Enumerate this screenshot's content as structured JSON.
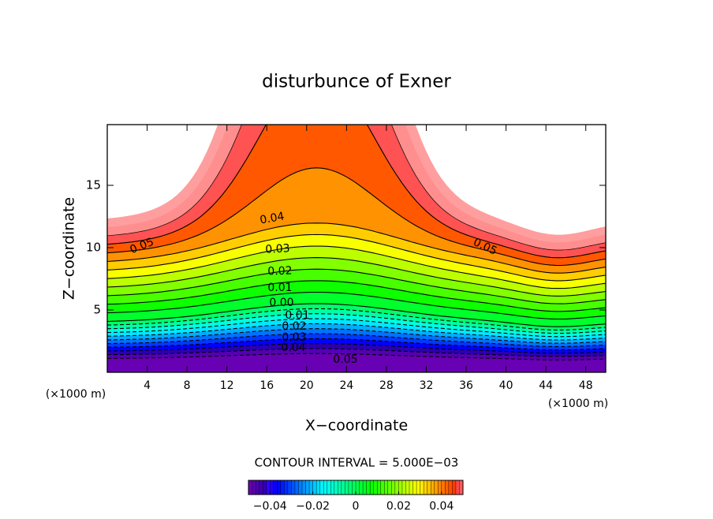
{
  "chart_data": {
    "type": "contour",
    "title": "disturbunce of Exner",
    "xlabel": "X−coordinate",
    "ylabel": "Z−coordinate",
    "x_unit_left": "(×1000 m)",
    "x_unit_right": "(×1000 m)",
    "xlim": [
      0,
      50
    ],
    "ylim": [
      0,
      19.87
    ],
    "xticks": [
      4,
      8,
      12,
      16,
      20,
      24,
      28,
      32,
      36,
      40,
      44,
      48
    ],
    "yticks": [
      5,
      10,
      15
    ],
    "contour_labels": [
      "0.05",
      "0.04",
      "0.03",
      "0.02",
      "0.01",
      "0.00",
      "0.01",
      "0.02",
      "0.03",
      "0.04",
      "0.05",
      "0.05"
    ],
    "contour_interval": "CONTOUR INTERVAL = 5.000E−03",
    "colorbar_lim": [
      -0.05,
      0.05
    ],
    "colorbar_ticks": [
      {
        "value": -0.04,
        "label": "−0.04"
      },
      {
        "value": -0.02,
        "label": "−0.02"
      },
      0,
      0.02,
      0.04
    ]
  }
}
